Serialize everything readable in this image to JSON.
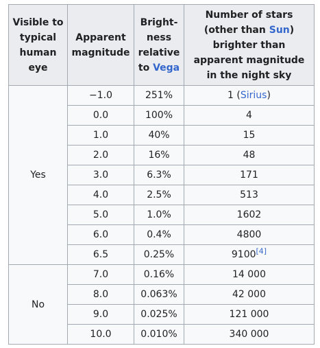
{
  "header": {
    "col1": "Visible to typical human eye",
    "col2": "Apparent magnitude",
    "col3_pre": "Bright-ness relative to ",
    "col3_link": "Vega",
    "col4_pre": "Number of stars (other than ",
    "col4_link": "Sun",
    "col4_post": ") brighter than apparent magnitude in the night sky"
  },
  "groups": {
    "yes": "Yes",
    "no": "No"
  },
  "rows": [
    {
      "mag": "−1.0",
      "bright": "251%",
      "count": "1 (",
      "count_link": "Sirius",
      "count_post": ")"
    },
    {
      "mag": "0.0",
      "bright": "100%",
      "count": "4"
    },
    {
      "mag": "1.0",
      "bright": "40%",
      "count": "15"
    },
    {
      "mag": "2.0",
      "bright": "16%",
      "count": "48"
    },
    {
      "mag": "3.0",
      "bright": "6.3%",
      "count": "171"
    },
    {
      "mag": "4.0",
      "bright": "2.5%",
      "count": "513"
    },
    {
      "mag": "5.0",
      "bright": "1.0%",
      "count": "1602"
    },
    {
      "mag": "6.0",
      "bright": "0.4%",
      "count": "4800"
    },
    {
      "mag": "6.5",
      "bright": "0.25%",
      "count": "9100",
      "count_ref": "[4]"
    },
    {
      "mag": "7.0",
      "bright": "0.16%",
      "count": "14 000"
    },
    {
      "mag": "8.0",
      "bright": "0.063%",
      "count": "42 000"
    },
    {
      "mag": "9.0",
      "bright": "0.025%",
      "count": "121 000"
    },
    {
      "mag": "10.0",
      "bright": "0.010%",
      "count": "340 000"
    }
  ]
}
